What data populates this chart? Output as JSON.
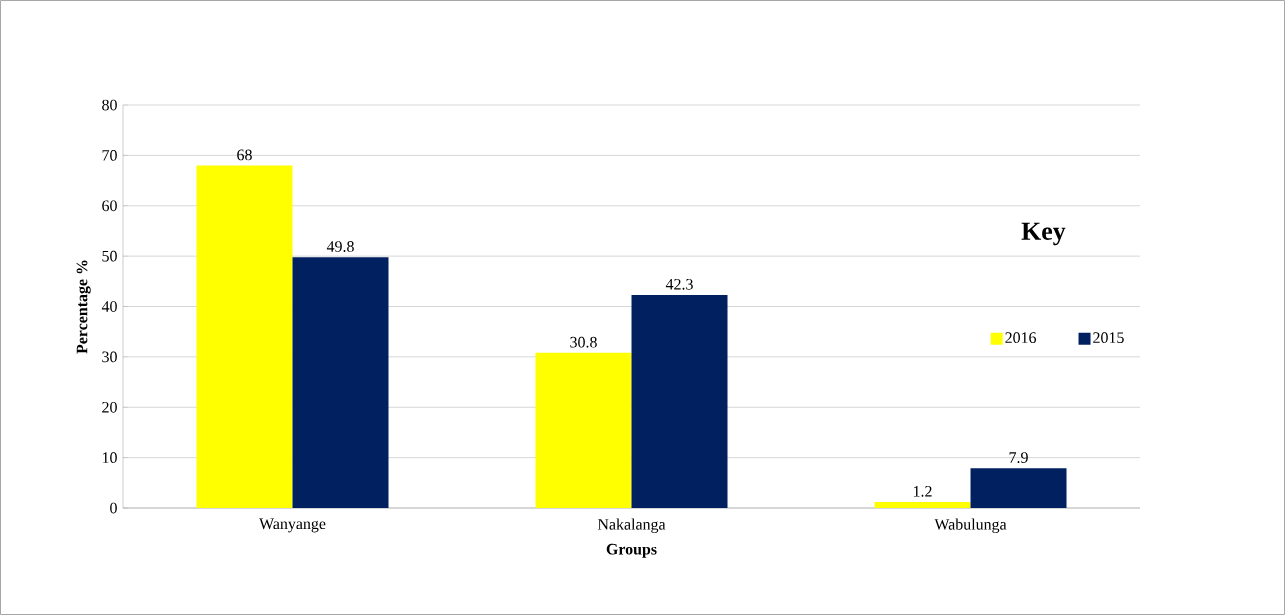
{
  "chart_data": {
    "type": "bar",
    "xlabel": "Groups",
    "ylabel": "Percentage %",
    "legend_title": "Key",
    "categories": [
      "Wanyange",
      "Nakalanga",
      "Wabulunga"
    ],
    "series": [
      {
        "name": "2016",
        "color": "#ffff00",
        "values": [
          68,
          30.8,
          1.2
        ]
      },
      {
        "name": "2015",
        "color": "#002060",
        "values": [
          49.8,
          42.3,
          7.9
        ]
      }
    ],
    "ylim": [
      0,
      80
    ],
    "yticks": [
      0,
      10,
      20,
      30,
      40,
      50,
      60,
      70,
      80
    ],
    "grid": "y",
    "legend": "right",
    "data_labels": true
  }
}
